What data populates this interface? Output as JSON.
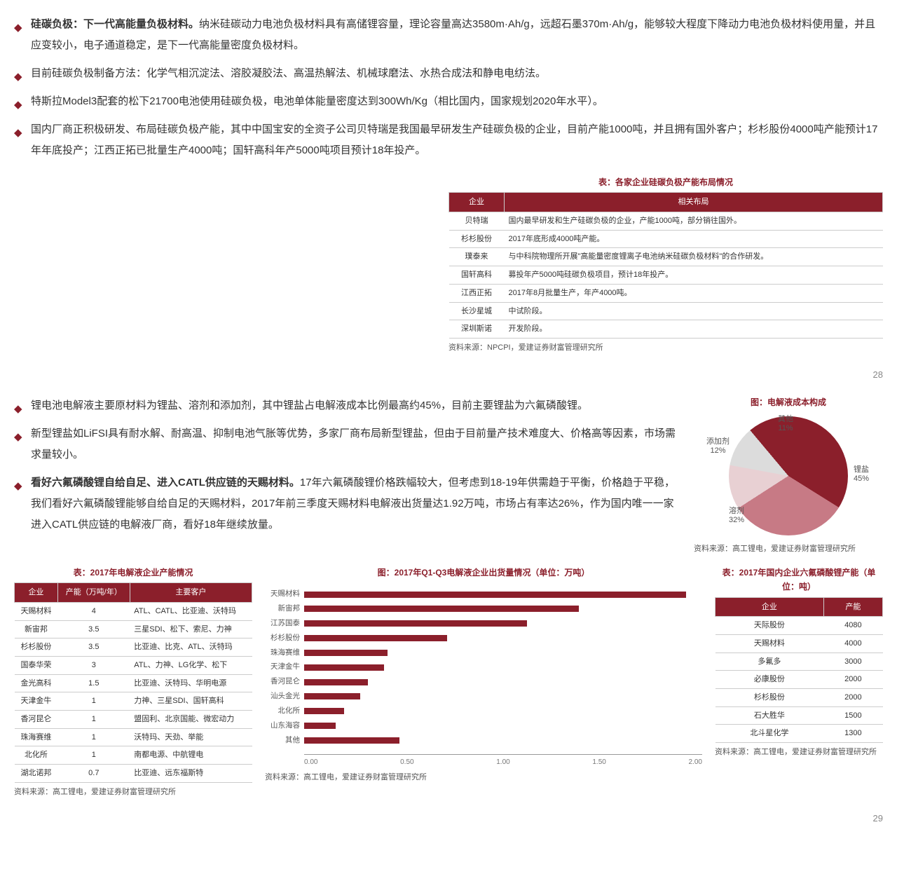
{
  "bullets_top": [
    {
      "hd": "硅碳负极：下一代高能量负极材料。",
      "tx": "纳米硅碳动力电池负极材料具有高储锂容量，理论容量高达3580m·Ah/g，远超石墨370m·Ah/g，能够较大程度下降动力电池负极材料使用量，并且应变较小，电子通道稳定，是下一代高能量密度负极材料。"
    },
    {
      "hd": "",
      "tx": "目前硅碳负极制备方法：化学气相沉淀法、溶胶凝胶法、高温热解法、机械球磨法、水热合成法和静电电纺法。"
    },
    {
      "hd": "",
      "tx": "特斯拉Model3配套的松下21700电池使用硅碳负极，电池单体能量密度达到300Wh/Kg（相比国内，国家规划2020年水平）。"
    },
    {
      "hd": "",
      "tx": "国内厂商正积极研发、布局硅碳负极产能，其中中国宝安的全资子公司贝特瑞是我国最早研发生产硅碳负极的企业，目前产能1000吨，并且拥有国外客户；杉杉股份4000吨产能预计17年年底投产；江西正拓已批量生产4000吨；国轩高科年产5000吨项目预计18年投产。"
    }
  ],
  "table1": {
    "title": "表：各家企业硅碳负极产能布局情况",
    "cols": [
      "企业",
      "相关布局"
    ],
    "rows": [
      [
        "贝特瑞",
        "国内最早研发和生产硅碳负极的企业，产能1000吨，部分销往国外。"
      ],
      [
        "杉杉股份",
        "2017年底形成4000吨产能。"
      ],
      [
        "璞泰来",
        "与中科院物理所开展\"高能量密度锂离子电池纳米硅碳负极材料\"的合作研发。"
      ],
      [
        "国轩高科",
        "募投年产5000吨硅碳负极项目，预计18年投产。"
      ],
      [
        "江西正拓",
        "2017年8月批量生产，年产4000吨。"
      ],
      [
        "长沙星城",
        "中试阶段。"
      ],
      [
        "深圳斯诺",
        "开发阶段。"
      ]
    ],
    "source": "资料来源：NPCPI，爱建证券财富管理研究所"
  },
  "page1_num": "28",
  "bullets_bot": [
    {
      "hd": "",
      "tx": "锂电池电解液主要原材料为锂盐、溶剂和添加剂，其中锂盐占电解液成本比例最高约45%，目前主要锂盐为六氟磷酸锂。"
    },
    {
      "hd": "",
      "tx": "新型锂盐如LiFSI具有耐水解、耐高温、抑制电池气胀等优势，多家厂商布局新型锂盐，但由于目前量产技术难度大、价格高等因素，市场需求量较小。"
    },
    {
      "hd": "看好六氟磷酸锂自给自足、进入CATL供应链的天赐材料。",
      "tx": "17年六氟磷酸锂价格跌幅较大，但考虑到18-19年供需趋于平衡，价格趋于平稳，我们看好六氟磷酸锂能够自给自足的天赐材料，2017年前三季度天赐材料电解液出货量达1.92万吨，市场占有率达26%，作为国内唯一一家进入CATL供应链的电解液厂商，看好18年继续放量。"
    }
  ],
  "pie": {
    "title": "图：电解液成本构成",
    "slices": [
      {
        "label": "锂盐",
        "pct": 45,
        "color": "#8b1f2b"
      },
      {
        "label": "溶剂",
        "pct": 32,
        "color": "#c77a85"
      },
      {
        "label": "添加剂",
        "pct": 12,
        "color": "#e8d0d3"
      },
      {
        "label": "其他",
        "pct": 11,
        "color": "#dcdcdc"
      }
    ],
    "source": "资料来源：高工锂电，爱建证券财富管理研究所"
  },
  "table2": {
    "title": "表：2017年电解液企业产能情况",
    "cols": [
      "企业",
      "产能（万吨/年）",
      "主要客户"
    ],
    "rows": [
      [
        "天赐材料",
        "4",
        "ATL、CATL、比亚迪、沃特玛"
      ],
      [
        "新宙邦",
        "3.5",
        "三星SDI、松下、索尼、力神"
      ],
      [
        "杉杉股份",
        "3.5",
        "比亚迪、比克、ATL、沃特玛"
      ],
      [
        "国泰华荣",
        "3",
        "ATL、力神、LG化学、松下"
      ],
      [
        "金光高科",
        "1.5",
        "比亚迪、沃特玛、华明电源"
      ],
      [
        "天津金牛",
        "1",
        "力神、三星SDI、国轩高科"
      ],
      [
        "香河昆仑",
        "1",
        "盟固利、北京国能、微宏动力"
      ],
      [
        "珠海赛维",
        "1",
        "沃特玛、天劲、举能"
      ],
      [
        "北化所",
        "1",
        "南都电源、中航锂电"
      ],
      [
        "湖北诺邦",
        "0.7",
        "比亚迪、远东福斯特"
      ]
    ],
    "source": "资料来源：高工锂电，爱建证券财富管理研究所"
  },
  "barchart": {
    "title": "图：2017年Q1-Q3电解液企业出货量情况（单位：万吨）",
    "cats": [
      "天赐材料",
      "新宙邦",
      "江苏国泰",
      "杉杉股份",
      "珠海赛维",
      "天津金牛",
      "香河昆仑",
      "汕头金光",
      "北化所",
      "山东海容",
      "其他"
    ],
    "vals": [
      1.92,
      1.38,
      1.12,
      0.72,
      0.42,
      0.4,
      0.32,
      0.28,
      0.2,
      0.16,
      0.48
    ],
    "ticks": [
      "0.00",
      "0.50",
      "1.00",
      "1.50",
      "2.00"
    ],
    "max": 2.0,
    "color": "#8b1f2b",
    "source": "资料来源：高工锂电，爱建证券财富管理研究所"
  },
  "table3": {
    "title": "表：2017年国内企业六氟磷酸锂产能（单位：吨）",
    "cols": [
      "企业",
      "产能"
    ],
    "rows": [
      [
        "天际股份",
        "4080"
      ],
      [
        "天赐材料",
        "4000"
      ],
      [
        "多氟多",
        "3000"
      ],
      [
        "必康股份",
        "2000"
      ],
      [
        "杉杉股份",
        "2000"
      ],
      [
        "石大胜华",
        "1500"
      ],
      [
        "北斗星化学",
        "1300"
      ]
    ],
    "source": "资料来源：高工锂电，爱建证券财富管理研究所"
  },
  "page2_num": "29"
}
